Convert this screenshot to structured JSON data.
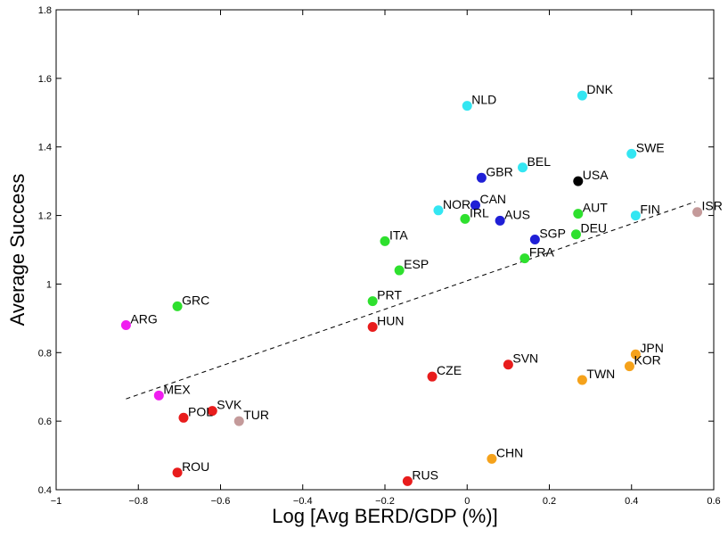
{
  "chart_data": {
    "type": "scatter",
    "xlabel": "Log [Avg BERD/GDP (%)]",
    "ylabel": "Average Success",
    "xlim": [
      -1,
      0.6
    ],
    "ylim": [
      0.4,
      1.8
    ],
    "xticks": [
      "−1",
      "−0.8",
      "−0.6",
      "−0.4",
      "−0.2",
      "0",
      "0.2",
      "0.4",
      "0.6"
    ],
    "yticks": [
      "0.4",
      "0.6",
      "0.8",
      "1",
      "1.2",
      "1.4",
      "1.6",
      "1.8"
    ],
    "grid": false,
    "colors": {
      "cyan": "#33e6f2",
      "blue": "#1f1fd6",
      "green": "#2ee02e",
      "red": "#e81c1c",
      "orange": "#f5a21b",
      "magenta": "#f01ef0",
      "rosy": "#c49a9a",
      "black": "#000000"
    },
    "points": [
      {
        "label": "NLD",
        "x": 0.0,
        "y": 1.52,
        "color": "cyan"
      },
      {
        "label": "DNK",
        "x": 0.28,
        "y": 1.55,
        "color": "cyan"
      },
      {
        "label": "SWE",
        "x": 0.4,
        "y": 1.38,
        "color": "cyan"
      },
      {
        "label": "BEL",
        "x": 0.135,
        "y": 1.34,
        "color": "cyan"
      },
      {
        "label": "USA",
        "x": 0.27,
        "y": 1.3,
        "color": "black"
      },
      {
        "label": "GBR",
        "x": 0.035,
        "y": 1.31,
        "color": "blue"
      },
      {
        "label": "CAN",
        "x": 0.02,
        "y": 1.23,
        "color": "blue"
      },
      {
        "label": "NOR",
        "x": -0.07,
        "y": 1.215,
        "color": "cyan"
      },
      {
        "label": "IRL",
        "x": -0.005,
        "y": 1.19,
        "color": "green"
      },
      {
        "label": "AUS",
        "x": 0.08,
        "y": 1.185,
        "color": "blue"
      },
      {
        "label": "AUT",
        "x": 0.27,
        "y": 1.205,
        "color": "green"
      },
      {
        "label": "FIN",
        "x": 0.41,
        "y": 1.2,
        "color": "cyan"
      },
      {
        "label": "ISR",
        "x": 0.56,
        "y": 1.21,
        "color": "rosy"
      },
      {
        "label": "SGP",
        "x": 0.165,
        "y": 1.13,
        "color": "blue"
      },
      {
        "label": "DEU",
        "x": 0.265,
        "y": 1.145,
        "color": "green"
      },
      {
        "label": "ITA",
        "x": -0.2,
        "y": 1.125,
        "color": "green"
      },
      {
        "label": "FRA",
        "x": 0.14,
        "y": 1.075,
        "color": "green"
      },
      {
        "label": "ESP",
        "x": -0.165,
        "y": 1.04,
        "color": "green"
      },
      {
        "label": "PRT",
        "x": -0.23,
        "y": 0.95,
        "color": "green"
      },
      {
        "label": "GRC",
        "x": -0.705,
        "y": 0.935,
        "color": "green"
      },
      {
        "label": "ARG",
        "x": -0.83,
        "y": 0.88,
        "color": "magenta"
      },
      {
        "label": "HUN",
        "x": -0.23,
        "y": 0.875,
        "color": "red"
      },
      {
        "label": "JPN",
        "x": 0.41,
        "y": 0.795,
        "color": "orange"
      },
      {
        "label": "KOR",
        "x": 0.395,
        "y": 0.76,
        "color": "orange"
      },
      {
        "label": "SVN",
        "x": 0.1,
        "y": 0.765,
        "color": "red"
      },
      {
        "label": "CZE",
        "x": -0.085,
        "y": 0.73,
        "color": "red"
      },
      {
        "label": "TWN",
        "x": 0.28,
        "y": 0.72,
        "color": "orange"
      },
      {
        "label": "MEX",
        "x": -0.75,
        "y": 0.675,
        "color": "magenta"
      },
      {
        "label": "SVK",
        "x": -0.62,
        "y": 0.63,
        "color": "red"
      },
      {
        "label": "POL",
        "x": -0.69,
        "y": 0.61,
        "color": "red"
      },
      {
        "label": "TUR",
        "x": -0.555,
        "y": 0.6,
        "color": "rosy"
      },
      {
        "label": "CHN",
        "x": 0.06,
        "y": 0.49,
        "color": "orange"
      },
      {
        "label": "ROU",
        "x": -0.705,
        "y": 0.45,
        "color": "red"
      },
      {
        "label": "RUS",
        "x": -0.145,
        "y": 0.425,
        "color": "red"
      }
    ],
    "trendline": {
      "style": "dashed",
      "x": [
        -0.83,
        0.555
      ],
      "y": [
        0.665,
        1.24
      ]
    }
  }
}
